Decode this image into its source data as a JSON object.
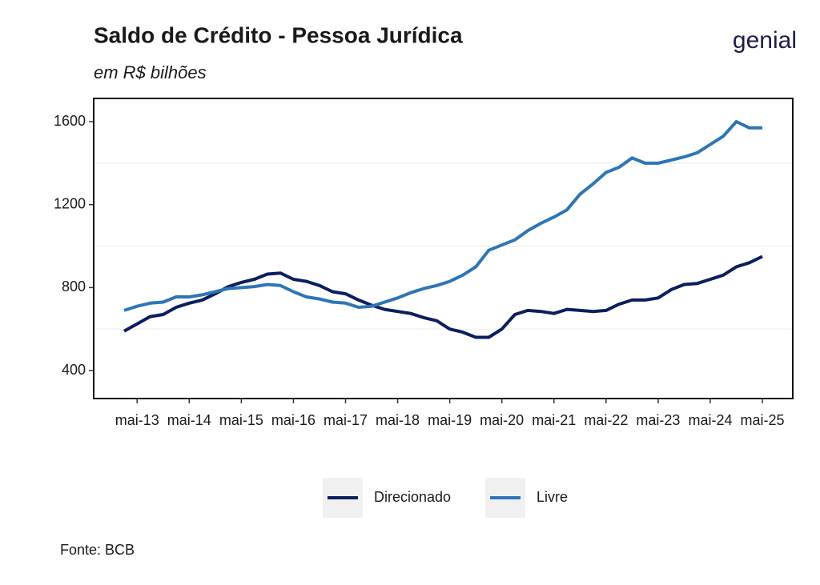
{
  "chart_data": {
    "type": "line",
    "title": "Saldo de Crédito - Pessoa Jurídica",
    "subtitle": "em R$ bilhões",
    "logo": "genial",
    "source": "Fonte: BCB",
    "x": [
      "2013-02",
      "2013-05",
      "2013-08",
      "2013-11",
      "2014-02",
      "2014-05",
      "2014-08",
      "2014-11",
      "2015-02",
      "2015-05",
      "2015-08",
      "2015-11",
      "2016-02",
      "2016-05",
      "2016-08",
      "2016-11",
      "2017-02",
      "2017-05",
      "2017-08",
      "2017-11",
      "2018-02",
      "2018-05",
      "2018-08",
      "2018-11",
      "2019-02",
      "2019-05",
      "2019-08",
      "2019-11",
      "2020-02",
      "2020-05",
      "2020-08",
      "2020-11",
      "2021-02",
      "2021-05",
      "2021-08",
      "2021-11",
      "2022-02",
      "2022-05",
      "2022-08",
      "2022-11",
      "2023-02",
      "2023-05",
      "2023-08",
      "2023-11",
      "2024-02",
      "2024-05",
      "2024-08",
      "2024-11",
      "2025-02",
      "2025-05"
    ],
    "series": [
      {
        "name": "Direcionado",
        "color": "#0b1f5e",
        "values": [
          590,
          625,
          660,
          670,
          705,
          725,
          740,
          770,
          805,
          825,
          840,
          865,
          870,
          840,
          830,
          810,
          780,
          770,
          740,
          715,
          695,
          685,
          675,
          655,
          640,
          600,
          585,
          560,
          560,
          600,
          670,
          690,
          685,
          675,
          695,
          690,
          685,
          690,
          720,
          740,
          740,
          750,
          790,
          815,
          820,
          840,
          860,
          900,
          920,
          950
        ]
      },
      {
        "name": "Livre",
        "color": "#2e75b6",
        "values": [
          690,
          710,
          725,
          730,
          755,
          755,
          765,
          780,
          795,
          800,
          805,
          815,
          810,
          780,
          755,
          745,
          730,
          725,
          705,
          710,
          730,
          750,
          775,
          795,
          810,
          830,
          860,
          900,
          980,
          1005,
          1030,
          1075,
          1110,
          1140,
          1175,
          1250,
          1300,
          1355,
          1380,
          1425,
          1400,
          1400,
          1415,
          1430,
          1450,
          1490,
          1530,
          1600,
          1570,
          1570
        ]
      }
    ],
    "xlim": [
      "2012-07",
      "2025-12"
    ],
    "xticks": [
      {
        "value": "2013-05",
        "label": "mai-13"
      },
      {
        "value": "2014-05",
        "label": "mai-14"
      },
      {
        "value": "2015-05",
        "label": "mai-15"
      },
      {
        "value": "2016-05",
        "label": "mai-16"
      },
      {
        "value": "2017-05",
        "label": "mai-17"
      },
      {
        "value": "2018-05",
        "label": "mai-18"
      },
      {
        "value": "2019-05",
        "label": "mai-19"
      },
      {
        "value": "2020-05",
        "label": "mai-20"
      },
      {
        "value": "2021-05",
        "label": "mai-21"
      },
      {
        "value": "2022-05",
        "label": "mai-22"
      },
      {
        "value": "2023-05",
        "label": "mai-23"
      },
      {
        "value": "2024-05",
        "label": "mai-24"
      },
      {
        "value": "2025-05",
        "label": "mai-25"
      }
    ],
    "ylim": [
      265,
      1712
    ],
    "yticks": [
      400,
      800,
      1200,
      1600
    ],
    "minor_yticks": [
      600,
      1000,
      1400
    ],
    "legend": "bottom"
  }
}
